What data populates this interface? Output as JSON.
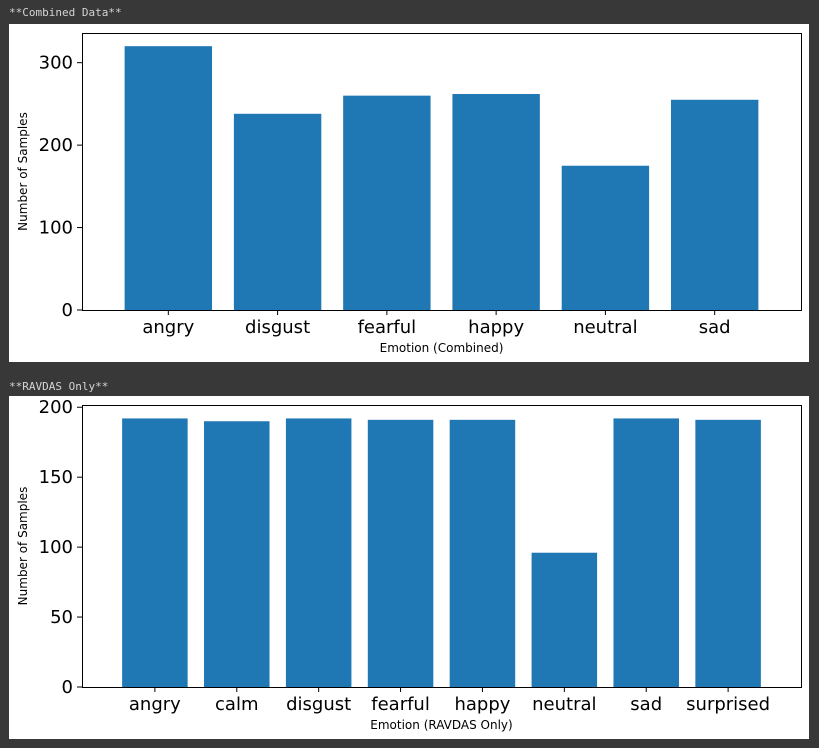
{
  "captions": [
    "**Combined Data**",
    "**RAVDAS Only**"
  ],
  "bar_color": "#1f77b4",
  "chart_data": [
    {
      "type": "bar",
      "categories": [
        "angry",
        "disgust",
        "fearful",
        "happy",
        "neutral",
        "sad"
      ],
      "values": [
        320,
        238,
        260,
        262,
        175,
        255
      ],
      "xlabel": "Emotion (Combined)",
      "ylabel": "Number of Samples",
      "ylim": [
        0,
        336
      ],
      "yticks": [
        0,
        100,
        200,
        300
      ],
      "grid": false,
      "legend": "none"
    },
    {
      "type": "bar",
      "categories": [
        "angry",
        "calm",
        "disgust",
        "fearful",
        "happy",
        "neutral",
        "sad",
        "surprised"
      ],
      "values": [
        192,
        190,
        192,
        191,
        191,
        96,
        192,
        191
      ],
      "xlabel": "Emotion (RAVDAS Only)",
      "ylabel": "Number of Samples",
      "ylim": [
        0,
        201.6
      ],
      "yticks": [
        0,
        50,
        100,
        150,
        200
      ],
      "grid": false,
      "legend": "none"
    }
  ]
}
